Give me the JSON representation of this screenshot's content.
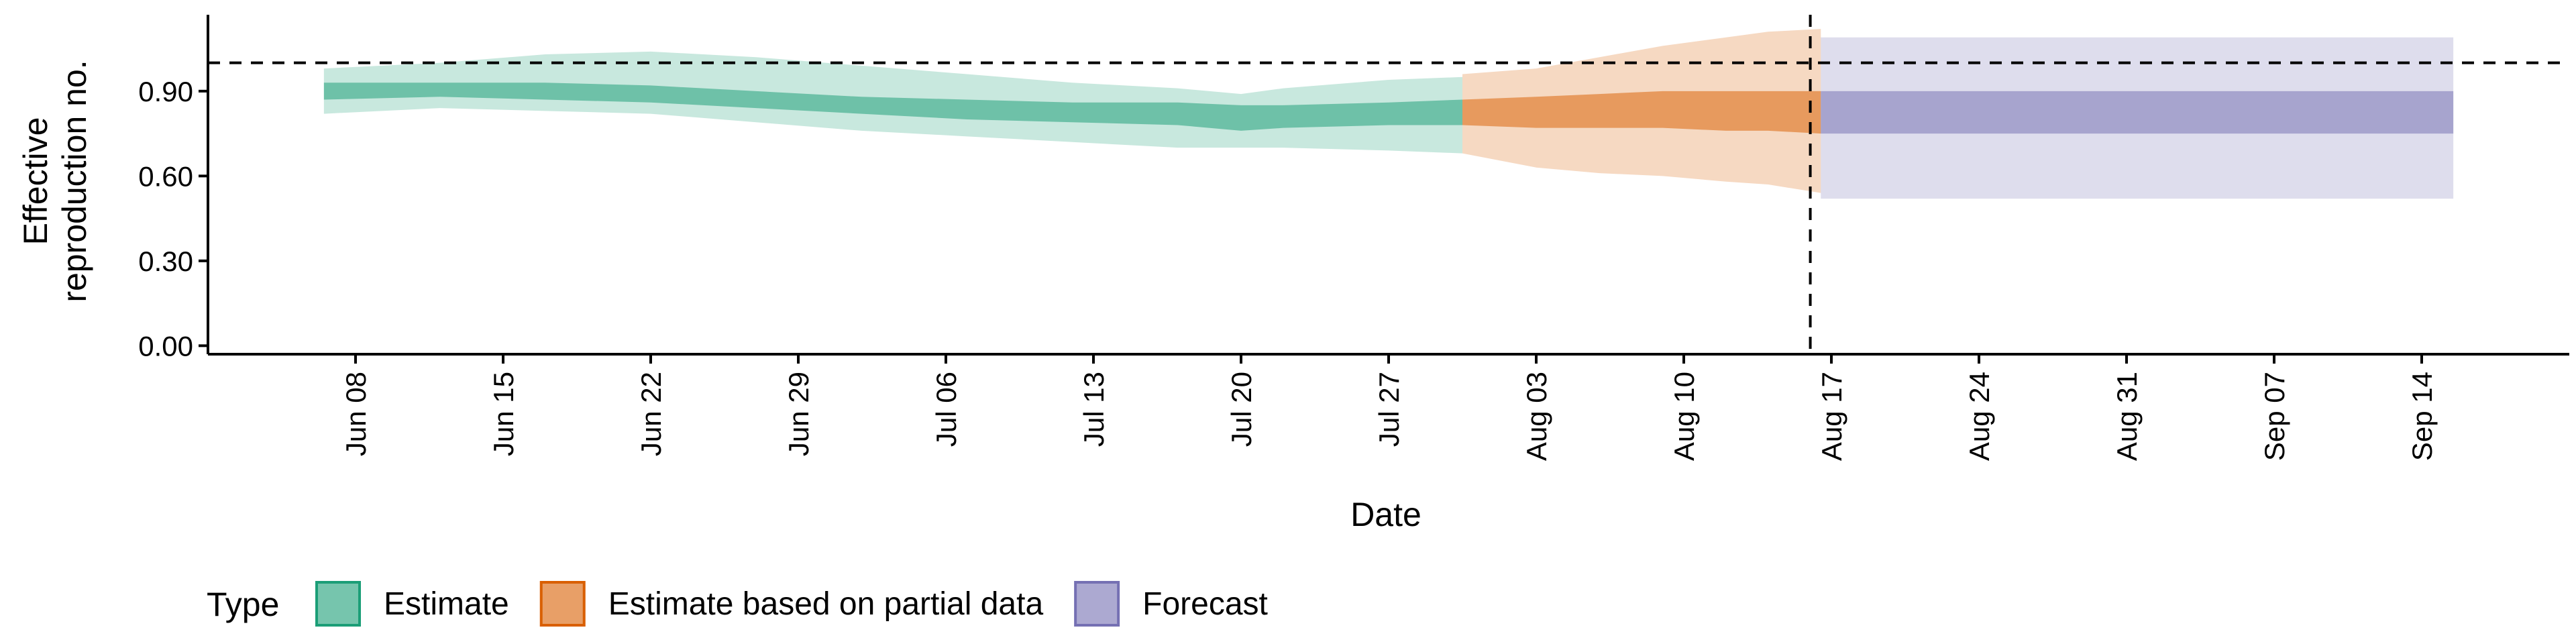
{
  "chart_data": {
    "type": "area",
    "xlabel": "Date",
    "ylabel_lines": [
      "Effective",
      "reproduction no."
    ],
    "x_range": [
      "2020-06-01",
      "2020-09-21"
    ],
    "ylim": [
      -0.03,
      1.17
    ],
    "y_ticks": [
      0.0,
      0.3,
      0.6,
      0.9
    ],
    "y_tick_labels": [
      "0.00",
      "0.30",
      "0.60",
      "0.90"
    ],
    "x_ticks": [
      "2020-06-08",
      "2020-06-15",
      "2020-06-22",
      "2020-06-29",
      "2020-07-06",
      "2020-07-13",
      "2020-07-20",
      "2020-07-27",
      "2020-08-03",
      "2020-08-10",
      "2020-08-17",
      "2020-08-24",
      "2020-08-31",
      "2020-09-07",
      "2020-09-14"
    ],
    "x_tick_labels": [
      "Jun 08",
      "Jun 15",
      "Jun 22",
      "Jun 29",
      "Jul 06",
      "Jul 13",
      "Jul 20",
      "Jul 27",
      "Aug 03",
      "Aug 10",
      "Aug 17",
      "Aug 24",
      "Aug 31",
      "Sep 07",
      "Sep 14"
    ],
    "reference_line_y": 1.0,
    "reference_line_x": "2020-08-16",
    "grid": false,
    "legend_title": "Type",
    "legend_position": "bottom",
    "series": [
      {
        "name": "Estimate",
        "color": "#1b9e77",
        "x": [
          "2020-06-07",
          "2020-06-12",
          "2020-06-17",
          "2020-06-22",
          "2020-06-27",
          "2020-07-02",
          "2020-07-07",
          "2020-07-12",
          "2020-07-17",
          "2020-07-20",
          "2020-07-22",
          "2020-07-27",
          "2020-07-30"
        ],
        "outer_lower": [
          0.82,
          0.84,
          0.83,
          0.82,
          0.79,
          0.76,
          0.74,
          0.72,
          0.7,
          0.7,
          0.7,
          0.69,
          0.68
        ],
        "outer_upper": [
          0.98,
          1.0,
          1.03,
          1.04,
          1.02,
          0.99,
          0.96,
          0.93,
          0.91,
          0.89,
          0.91,
          0.94,
          0.95
        ],
        "inner_lower": [
          0.87,
          0.88,
          0.87,
          0.86,
          0.84,
          0.82,
          0.8,
          0.79,
          0.78,
          0.76,
          0.77,
          0.78,
          0.78
        ],
        "inner_upper": [
          0.93,
          0.93,
          0.93,
          0.92,
          0.9,
          0.88,
          0.87,
          0.86,
          0.86,
          0.85,
          0.85,
          0.86,
          0.87
        ]
      },
      {
        "name": "Estimate based on partial data",
        "color": "#d95f02",
        "x": [
          "2020-07-31",
          "2020-08-03",
          "2020-08-06",
          "2020-08-09",
          "2020-08-12",
          "2020-08-14",
          "2020-08-16"
        ],
        "outer_lower": [
          0.68,
          0.63,
          0.61,
          0.6,
          0.58,
          0.57,
          0.54
        ],
        "outer_upper": [
          0.96,
          0.98,
          1.02,
          1.06,
          1.09,
          1.11,
          1.12
        ],
        "inner_lower": [
          0.78,
          0.77,
          0.77,
          0.77,
          0.76,
          0.76,
          0.75
        ],
        "inner_upper": [
          0.87,
          0.88,
          0.89,
          0.9,
          0.9,
          0.9,
          0.9
        ]
      },
      {
        "name": "Forecast",
        "color": "#7570b3",
        "x": [
          "2020-08-17",
          "2020-09-15"
        ],
        "outer_lower": [
          0.52,
          0.52
        ],
        "outer_upper": [
          1.09,
          1.09
        ],
        "inner_lower": [
          0.75,
          0.75
        ],
        "inner_upper": [
          0.9,
          0.9
        ]
      }
    ]
  }
}
